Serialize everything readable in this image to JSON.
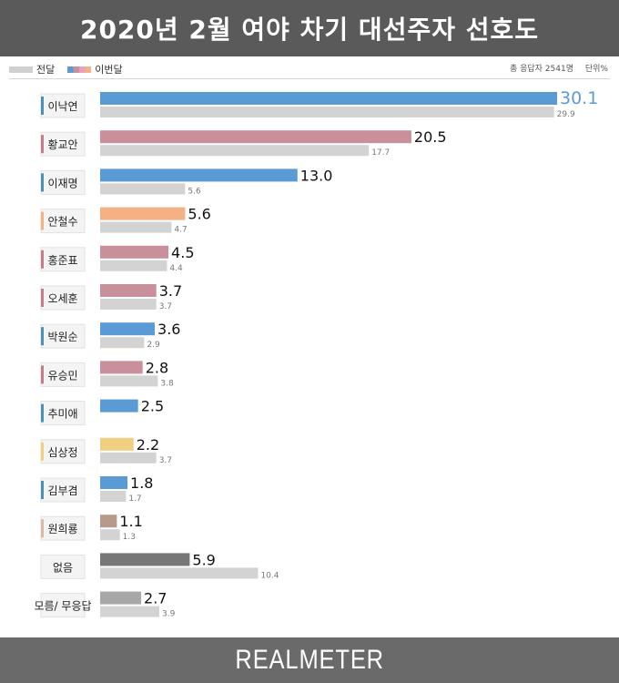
{
  "header": {
    "title": "2020년 2월 여야 차기 대선주자 선호도"
  },
  "legend": {
    "prev_label": "전달",
    "curr_label": "이번달"
  },
  "meta": {
    "respondents": "총 응답자 2541명",
    "unit": "단위%"
  },
  "footer": {
    "brand": "REALMETER"
  },
  "chart_data": {
    "type": "bar",
    "orientation": "horizontal",
    "categories": [
      "이낙연",
      "황교안",
      "이재명",
      "안철수",
      "홍준표",
      "오세훈",
      "박원순",
      "유승민",
      "추미애",
      "심상정",
      "김부겸",
      "원희룡",
      "없음",
      "모름/ 무응답"
    ],
    "series": [
      {
        "name": "이번달",
        "values": [
          30.1,
          20.5,
          13.0,
          5.6,
          4.5,
          3.7,
          3.6,
          2.8,
          2.5,
          2.2,
          1.8,
          1.1,
          5.9,
          2.7
        ],
        "labels": [
          "30.1",
          "20.5",
          "13.0",
          "5.6",
          "4.5",
          "3.7",
          "3.6",
          "2.8",
          "2.5",
          "2.2",
          "1.8",
          "1.1",
          "5.9",
          "2.7"
        ]
      },
      {
        "name": "전달",
        "values": [
          29.9,
          17.7,
          5.6,
          4.7,
          4.4,
          3.7,
          2.9,
          3.8,
          null,
          3.7,
          1.7,
          1.3,
          10.4,
          3.9
        ],
        "labels": [
          "29.9",
          "17.7",
          "5.6",
          "4.7",
          "4.4",
          "3.7",
          "2.9",
          "3.8",
          "",
          "3.7",
          "1.7",
          "1.3",
          "10.4",
          "3.9"
        ]
      }
    ],
    "bar_colors": [
      "#5b9bd5",
      "#c9909c",
      "#5b9bd5",
      "#f4b183",
      "#c9909c",
      "#c9909c",
      "#5b9bd5",
      "#c9909c",
      "#5b9bd5",
      "#f0d080",
      "#5b9bd5",
      "#b79a8a",
      "#777777",
      "#a8a8a8"
    ],
    "marker_colors": [
      "#4a90b8",
      "#c67b8a",
      "#4a90b8",
      "#f4b183",
      "#c67b8a",
      "#c67b8a",
      "#4a90b8",
      "#c67b8a",
      "#4a90b8",
      "#f0d080",
      "#4a90b8",
      "#d9b8a8",
      null,
      null
    ],
    "prev_color": "#d3d3d3",
    "top_label_color": "#5b9bd5",
    "xlim": [
      0,
      30.1
    ]
  }
}
